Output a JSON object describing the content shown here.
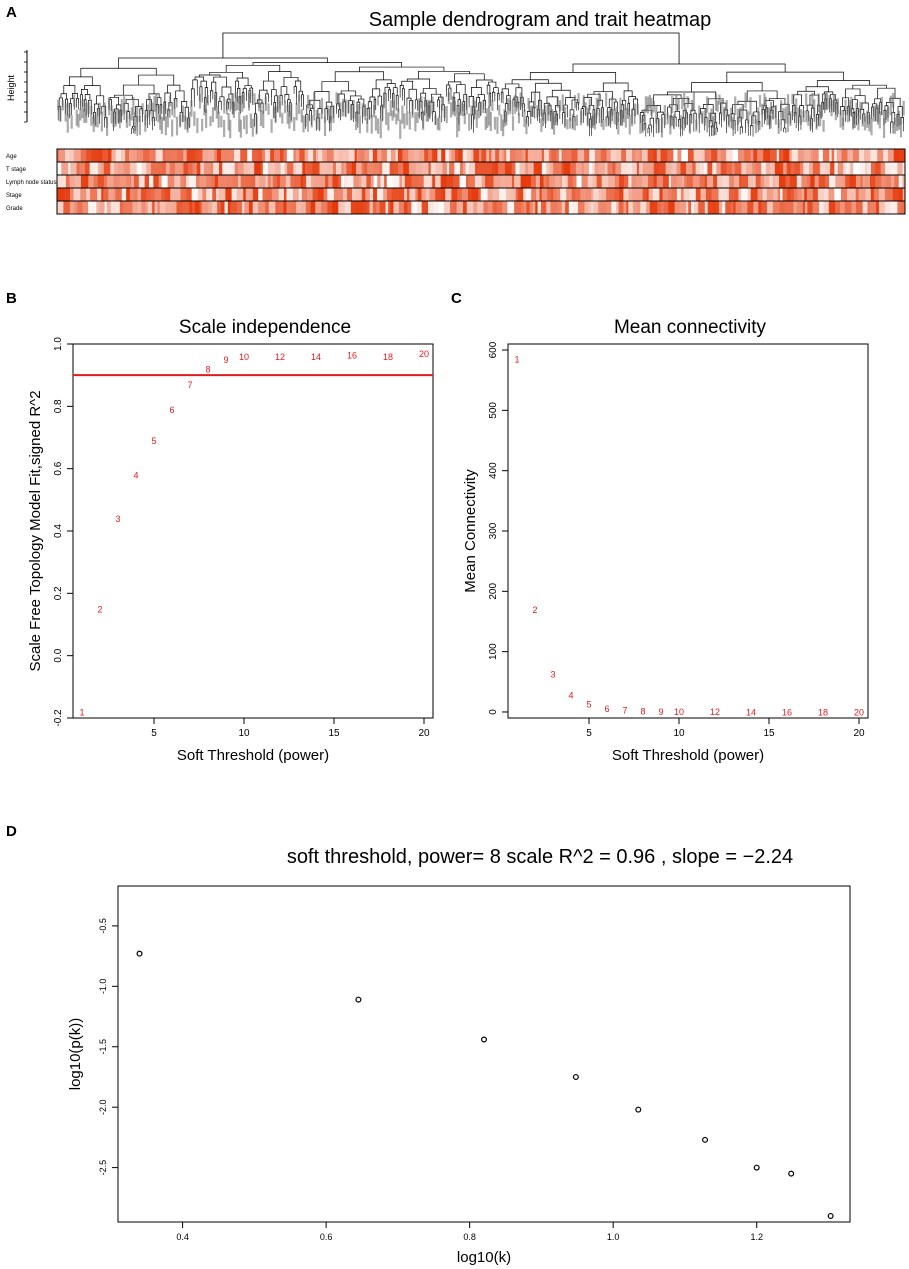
{
  "panels": {
    "a": {
      "letter": "A",
      "title": "Sample dendrogram and trait heatmap"
    },
    "b": {
      "letter": "B",
      "title": "Scale independence"
    },
    "c": {
      "letter": "C",
      "title": "Mean connectivity"
    },
    "d": {
      "letter": "D",
      "title": "soft threshold, power= 8  scale R^2 = 0.96 , slope = −2.24"
    }
  },
  "colors": {
    "accent": "#e31a1c",
    "trait_low": "#ffffff",
    "trait_high": "#e63a0c",
    "axis": "#000000"
  },
  "chart_data": [
    {
      "id": "A",
      "type": "heatmap",
      "title": "Sample dendrogram and trait heatmap",
      "ylabel": "Height",
      "traits": [
        "Age",
        "T stage",
        "Lymph node status",
        "Stage",
        "Grade"
      ],
      "note": "Hierarchical clustering dendrogram of samples with trait color bars (white = low, red = high)"
    },
    {
      "id": "B",
      "type": "scatter",
      "title": "Scale independence",
      "xlabel": "Soft Threshold (power)",
      "ylabel": "Scale Free Topology Model Fit,signed R^2",
      "xlim": [
        0.5,
        20.5
      ],
      "ylim": [
        -0.2,
        1.0
      ],
      "xticks": [
        5,
        10,
        15,
        20
      ],
      "yticks": [
        -0.2,
        0.0,
        0.2,
        0.4,
        0.6,
        0.8,
        1.0
      ],
      "ytick_labels": [
        "-0.2",
        "0.0",
        "0.2",
        "0.4",
        "0.6",
        "0.8",
        "1.0"
      ],
      "x": [
        1,
        2,
        3,
        4,
        5,
        6,
        7,
        8,
        9,
        10,
        12,
        14,
        16,
        18,
        20
      ],
      "y": [
        -0.18,
        0.15,
        0.44,
        0.58,
        0.69,
        0.79,
        0.87,
        0.92,
        0.95,
        0.96,
        0.96,
        0.96,
        0.965,
        0.96,
        0.97
      ],
      "point_labels": [
        "1",
        "2",
        "3",
        "4",
        "5",
        "6",
        "7",
        "8",
        "9",
        "10",
        "12",
        "14",
        "16",
        "18",
        "20"
      ],
      "hline": 0.9
    },
    {
      "id": "C",
      "type": "scatter",
      "title": "Mean connectivity",
      "xlabel": "Soft Threshold (power)",
      "ylabel": "Mean Connectivity",
      "xlim": [
        0.5,
        20.5
      ],
      "ylim": [
        -10,
        610
      ],
      "xticks": [
        5,
        10,
        15,
        20
      ],
      "yticks": [
        0,
        100,
        200,
        300,
        400,
        500,
        600
      ],
      "ytick_labels": [
        "0",
        "100",
        "200",
        "300",
        "400",
        "500",
        "600"
      ],
      "x": [
        1,
        2,
        3,
        4,
        5,
        6,
        7,
        8,
        9,
        10,
        12,
        14,
        16,
        18,
        20
      ],
      "y": [
        585,
        170,
        63,
        28,
        13,
        6,
        3,
        2,
        1,
        0.8,
        0.5,
        0.3,
        0.2,
        0.1,
        0.1
      ],
      "point_labels": [
        "1",
        "2",
        "3",
        "4",
        "5",
        "6",
        "7",
        "8",
        "9",
        "10",
        "12",
        "14",
        "16",
        "18",
        "20"
      ]
    },
    {
      "id": "D",
      "type": "scatter",
      "title": "soft threshold, power= 8  scale R^2 = 0.96 , slope = −2.24",
      "xlabel": "log10(k)",
      "ylabel": "log10(p(k))",
      "xlim": [
        0.31,
        1.33
      ],
      "ylim": [
        -2.95,
        -0.17
      ],
      "xticks": [
        0.4,
        0.6,
        0.8,
        1.0,
        1.2
      ],
      "xtick_labels": [
        "0.4",
        "0.6",
        "0.8",
        "1.0",
        "1.2"
      ],
      "yticks": [
        -2.5,
        -2.0,
        -1.5,
        -1.0,
        -0.5
      ],
      "ytick_labels": [
        "-2.5",
        "-2.0",
        "-1.5",
        "-1.0",
        "-0.5"
      ],
      "x": [
        0.34,
        0.645,
        0.82,
        0.948,
        1.035,
        1.128,
        1.2,
        1.248,
        1.303
      ],
      "y": [
        -0.73,
        -1.11,
        -1.44,
        -1.75,
        -2.02,
        -2.27,
        -2.5,
        -2.55,
        -2.9
      ]
    }
  ]
}
